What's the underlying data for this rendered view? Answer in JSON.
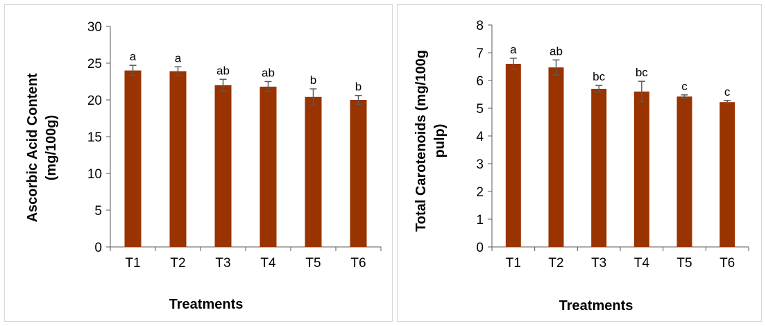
{
  "chart_data": [
    {
      "type": "bar",
      "categories": [
        "T1",
        "T2",
        "T3",
        "T4",
        "T5",
        "T6"
      ],
      "values": [
        24.0,
        23.9,
        22.0,
        21.8,
        20.4,
        20.0
      ],
      "errors": [
        0.7,
        0.6,
        0.8,
        0.7,
        1.1,
        0.6
      ],
      "annotations": [
        "a",
        "a",
        "ab",
        "ab",
        "b",
        "b"
      ],
      "xlabel": "Treatments",
      "ylabel_lines": [
        "Ascorbic Acid Content",
        "(mg/100g)"
      ],
      "ylim": [
        0,
        30
      ],
      "yticks": [
        0,
        5,
        10,
        15,
        20,
        25,
        30
      ],
      "bar_color": "#993300",
      "grid": false
    },
    {
      "type": "bar",
      "categories": [
        "T1",
        "T2",
        "T3",
        "T4",
        "T5",
        "T6"
      ],
      "values": [
        6.6,
        6.47,
        5.7,
        5.6,
        5.42,
        5.22
      ],
      "errors": [
        0.2,
        0.27,
        0.12,
        0.37,
        0.06,
        0.06
      ],
      "annotations": [
        "a",
        "ab",
        "bc",
        "bc",
        "c",
        "c"
      ],
      "xlabel": "Treatments",
      "ylabel_lines": [
        "Total Carotenoids (mg/100g",
        "pulp)"
      ],
      "ylim": [
        0,
        8
      ],
      "yticks": [
        0,
        1,
        2,
        3,
        4,
        5,
        6,
        7,
        8
      ],
      "bar_color": "#993300",
      "grid": false
    }
  ]
}
